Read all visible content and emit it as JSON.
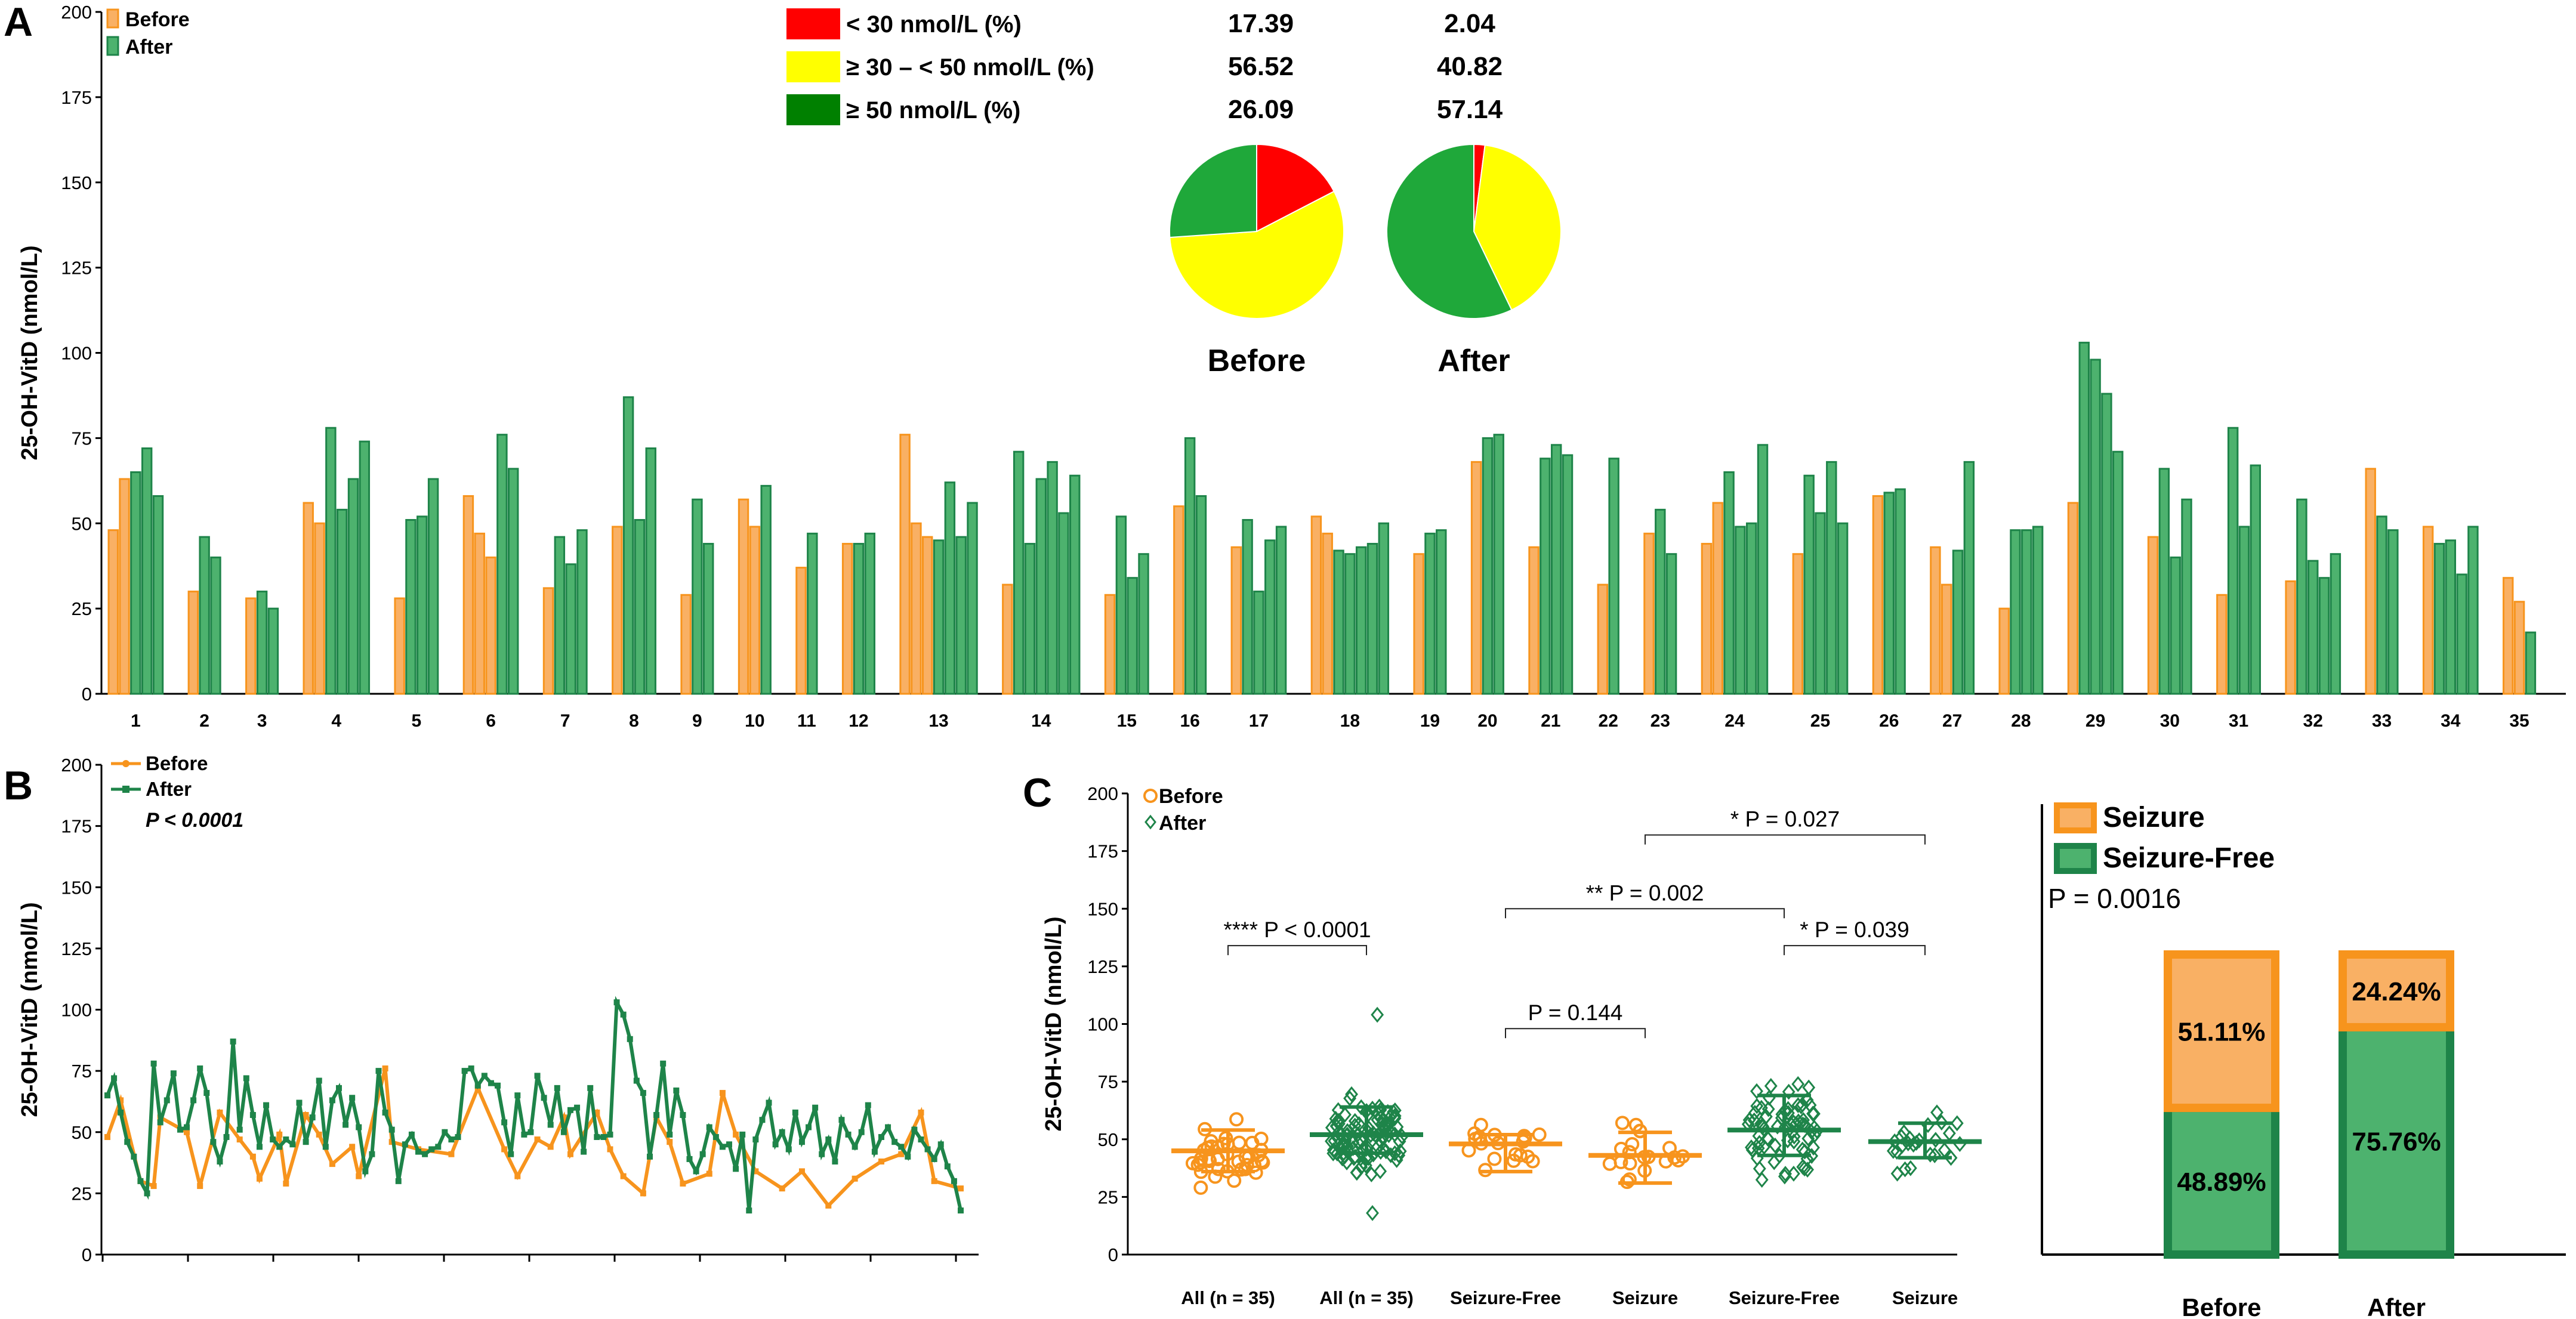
{
  "colors": {
    "before": "#F7941D",
    "before_light": "#F9B064",
    "after": "#1E8449",
    "after_light": "#4DB26E",
    "pie_red": "#FF0000",
    "pie_yellow": "#FFFF00",
    "pie_green": "#1FA83A",
    "legend_green": "#008000"
  },
  "panels": {
    "a": "A",
    "b": "B",
    "c": "C"
  },
  "chart_data": [
    {
      "id": "A",
      "type": "bar",
      "ylabel": "25-OH-VitD (nmol/L)",
      "ylim": [
        0,
        200
      ],
      "yticks": [
        0,
        25,
        50,
        75,
        100,
        125,
        150,
        175,
        200
      ],
      "legend": [
        "Before",
        "After"
      ],
      "patients": [
        {
          "label": "1",
          "before": [
            48,
            63
          ],
          "after": [
            65,
            72,
            58
          ]
        },
        {
          "label": "2",
          "before": [
            30
          ],
          "after": [
            46,
            40
          ]
        },
        {
          "label": "3",
          "before": [
            28
          ],
          "after": [
            30,
            25
          ]
        },
        {
          "label": "4",
          "before": [
            56,
            50
          ],
          "after": [
            78,
            54,
            63,
            74
          ]
        },
        {
          "label": "5",
          "before": [
            28
          ],
          "after": [
            51,
            52,
            63
          ]
        },
        {
          "label": "6",
          "before": [
            58,
            47,
            40
          ],
          "after": [
            76,
            66
          ]
        },
        {
          "label": "7",
          "before": [
            31
          ],
          "after": [
            46,
            38,
            48
          ]
        },
        {
          "label": "8",
          "before": [
            49
          ],
          "after": [
            87,
            51,
            72
          ]
        },
        {
          "label": "9",
          "before": [
            29
          ],
          "after": [
            57,
            44
          ]
        },
        {
          "label": "10",
          "before": [
            57,
            49
          ],
          "after": [
            61
          ]
        },
        {
          "label": "11",
          "before": [
            37
          ],
          "after": [
            47
          ]
        },
        {
          "label": "12",
          "before": [
            44
          ],
          "after": [
            44,
            47
          ]
        },
        {
          "label": "13",
          "before": [
            76,
            50,
            46
          ],
          "after": [
            45,
            62,
            46,
            56
          ]
        },
        {
          "label": "14",
          "before": [
            32
          ],
          "after": [
            71,
            44,
            63,
            68,
            53,
            64
          ]
        },
        {
          "label": "15",
          "before": [
            29
          ],
          "after": [
            52,
            34,
            41
          ]
        },
        {
          "label": "16",
          "before": [
            55
          ],
          "after": [
            75,
            58
          ]
        },
        {
          "label": "17",
          "before": [
            43
          ],
          "after": [
            51,
            30,
            45,
            49
          ]
        },
        {
          "label": "18",
          "before": [
            52,
            47
          ],
          "after": [
            42,
            41,
            43,
            44,
            50
          ]
        },
        {
          "label": "19",
          "before": [
            41
          ],
          "after": [
            47,
            48
          ]
        },
        {
          "label": "20",
          "before": [
            68
          ],
          "after": [
            75,
            76
          ]
        },
        {
          "label": "21",
          "before": [
            43
          ],
          "after": [
            69,
            73,
            70
          ]
        },
        {
          "label": "22",
          "before": [
            32
          ],
          "after": [
            69
          ]
        },
        {
          "label": "23",
          "before": [
            47
          ],
          "after": [
            54,
            41
          ]
        },
        {
          "label": "24",
          "before": [
            44,
            56
          ],
          "after": [
            65,
            49,
            50,
            73
          ]
        },
        {
          "label": "25",
          "before": [
            41
          ],
          "after": [
            64,
            53,
            68,
            50
          ]
        },
        {
          "label": "26",
          "before": [
            58
          ],
          "after": [
            59,
            60
          ]
        },
        {
          "label": "27",
          "before": [
            43,
            32
          ],
          "after": [
            42,
            68
          ]
        },
        {
          "label": "28",
          "before": [
            25
          ],
          "after": [
            48,
            48,
            49
          ]
        },
        {
          "label": "29",
          "before": [
            56
          ],
          "after": [
            103,
            98,
            88,
            71
          ]
        },
        {
          "label": "30",
          "before": [
            46
          ],
          "after": [
            66,
            40,
            57
          ]
        },
        {
          "label": "31",
          "before": [
            29
          ],
          "after": [
            78,
            49,
            67
          ]
        },
        {
          "label": "32",
          "before": [
            33
          ],
          "after": [
            57,
            39,
            34,
            41
          ]
        },
        {
          "label": "33",
          "before": [
            66
          ],
          "after": [
            52,
            48
          ]
        },
        {
          "label": "34",
          "before": [
            49
          ],
          "after": [
            44,
            45,
            35,
            49
          ]
        },
        {
          "label": "35",
          "before": [
            34,
            27
          ],
          "after": [
            18
          ]
        }
      ]
    },
    {
      "id": "pie",
      "type": "pie",
      "categories": [
        "< 30 nmol/L (%)",
        "≥ 30 – < 50 nmol/L (%)",
        "≥ 50 nmol/L (%)"
      ],
      "series": [
        {
          "name": "Before",
          "values": [
            17.39,
            56.52,
            26.09
          ],
          "labels": [
            "17.39",
            "56.52",
            "26.09"
          ]
        },
        {
          "name": "After",
          "values": [
            2.04,
            40.82,
            57.14
          ],
          "labels": [
            "2.04",
            "40.82",
            "57.14"
          ]
        }
      ]
    },
    {
      "id": "B",
      "type": "line",
      "ylabel": "25-OH-VitD (nmol/L)",
      "ylim": [
        0,
        200
      ],
      "yticks": [
        0,
        25,
        50,
        75,
        100,
        125,
        150,
        175,
        200
      ],
      "legend": [
        "Before",
        "After"
      ],
      "annotation": "P < 0.0001",
      "series": [
        {
          "name": "Before",
          "x": [
            1,
            3,
            6,
            8,
            9,
            13,
            15,
            18,
            21,
            23,
            24,
            27,
            28,
            31,
            33,
            35,
            38,
            39,
            43,
            44,
            48,
            53,
            57,
            61,
            63,
            66,
            68,
            70,
            71,
            75,
            77,
            79,
            82,
            84,
            86,
            88,
            92,
            94,
            96,
            99,
            103,
            106,
            110,
            114,
            118,
            121,
            124,
            126,
            130
          ],
          "values": [
            48,
            63,
            30,
            28,
            56,
            50,
            28,
            58,
            47,
            40,
            31,
            49,
            29,
            57,
            49,
            37,
            44,
            32,
            76,
            46,
            43,
            41,
            68,
            43,
            32,
            47,
            44,
            56,
            41,
            58,
            43,
            32,
            25,
            56,
            46,
            29,
            33,
            66,
            49,
            34,
            27,
            34,
            20,
            31,
            38,
            41,
            58,
            30,
            27
          ]
        },
        {
          "name": "After",
          "x": [
            1,
            2,
            3,
            4,
            5,
            6,
            7,
            8,
            9,
            10,
            11,
            12,
            13,
            14,
            15,
            16,
            17,
            18,
            19,
            20,
            21,
            22,
            23,
            24,
            25,
            26,
            27,
            28,
            29,
            30,
            31,
            32,
            33,
            34,
            35,
            36,
            37,
            38,
            39,
            40,
            41,
            42,
            43,
            44,
            45,
            46,
            47,
            48,
            49,
            50,
            51,
            52,
            53,
            54,
            55,
            56,
            57,
            58,
            59,
            60,
            61,
            62,
            63,
            64,
            65,
            66,
            67,
            68,
            69,
            70,
            71,
            72,
            73,
            74,
            75,
            76,
            77,
            78,
            79,
            80,
            81,
            82,
            83,
            84,
            85,
            86,
            87,
            88,
            89,
            90,
            91,
            92,
            93,
            94,
            95,
            96,
            97,
            98,
            99,
            100,
            101,
            102,
            103,
            104,
            105,
            106,
            107,
            108,
            109,
            110,
            111,
            112,
            113,
            114,
            115,
            116,
            117,
            118,
            119,
            120,
            121,
            122,
            123,
            124,
            125,
            126,
            127,
            128,
            129,
            130
          ],
          "values": [
            65,
            72,
            58,
            46,
            40,
            30,
            25,
            78,
            54,
            63,
            74,
            51,
            52,
            63,
            76,
            66,
            46,
            38,
            48,
            87,
            51,
            72,
            57,
            44,
            61,
            47,
            44,
            47,
            45,
            62,
            46,
            56,
            71,
            44,
            63,
            68,
            53,
            64,
            52,
            34,
            41,
            75,
            58,
            51,
            30,
            45,
            49,
            42,
            41,
            43,
            44,
            50,
            47,
            48,
            75,
            76,
            69,
            73,
            70,
            69,
            54,
            41,
            65,
            49,
            50,
            73,
            64,
            53,
            68,
            50,
            59,
            60,
            42,
            68,
            48,
            48,
            49,
            103,
            98,
            88,
            71,
            66,
            40,
            57,
            78,
            49,
            67,
            57,
            39,
            34,
            41,
            52,
            48,
            44,
            45,
            35,
            49,
            18,
            47,
            55,
            62,
            45,
            50,
            43,
            58,
            46,
            52,
            60,
            41,
            47,
            38,
            55,
            49,
            44,
            50,
            61,
            42,
            48,
            52,
            46,
            44,
            40,
            51,
            47,
            43,
            39,
            45,
            36,
            30,
            18
          ]
        }
      ]
    },
    {
      "id": "C",
      "type": "scatter",
      "ylabel": "25-OH-VitD (nmol/L)",
      "ylim": [
        0,
        200
      ],
      "yticks": [
        0,
        25,
        50,
        75,
        100,
        125,
        150,
        175,
        200
      ],
      "legend": [
        "Before",
        "After"
      ],
      "groups": [
        {
          "label": "All (n = 35)",
          "kind": "Before",
          "median": 45,
          "q1": 36,
          "q3": 54,
          "n": 40
        },
        {
          "label": "All (n = 35)",
          "kind": "After",
          "median": 52,
          "q1": 44,
          "q3": 64,
          "n": 110
        },
        {
          "label": "Seizure-Free",
          "kind": "Before",
          "median": 48,
          "q1": 36,
          "q3": 52,
          "n": 20
        },
        {
          "label": "Seizure",
          "kind": "Before",
          "median": 43,
          "q1": 31,
          "q3": 53,
          "n": 20
        },
        {
          "label": "Seizure-Free",
          "kind": "After",
          "median": 54,
          "q1": 43,
          "q3": 69,
          "n": 75
        },
        {
          "label": "Seizure",
          "kind": "After",
          "median": 49,
          "q1": 42,
          "q3": 57,
          "n": 25
        }
      ],
      "comparisons": [
        {
          "text": "**** P < 0.0001",
          "from": 0,
          "to": 1,
          "y": 134
        },
        {
          "text": "P = 0.144",
          "from": 2,
          "to": 3,
          "y": 98
        },
        {
          "text": "** P = 0.002",
          "from": 2,
          "to": 4,
          "y": 150
        },
        {
          "text": "* P = 0.039",
          "from": 4,
          "to": 5,
          "y": 134
        },
        {
          "text": "* P = 0.027",
          "from": 3,
          "to": 5,
          "y": 182
        }
      ]
    },
    {
      "id": "stacked",
      "type": "bar",
      "categories": [
        "Before",
        "After"
      ],
      "legend": [
        "Seizure",
        "Seizure-Free"
      ],
      "annotation": "P = 0.0016",
      "series": [
        {
          "name": "Seizure-Free",
          "values": [
            48.89,
            75.76
          ],
          "labels": [
            "48.89%",
            "75.76%"
          ]
        },
        {
          "name": "Seizure",
          "values": [
            51.11,
            24.24
          ],
          "labels": [
            "51.11%",
            "24.24%"
          ]
        }
      ]
    }
  ]
}
